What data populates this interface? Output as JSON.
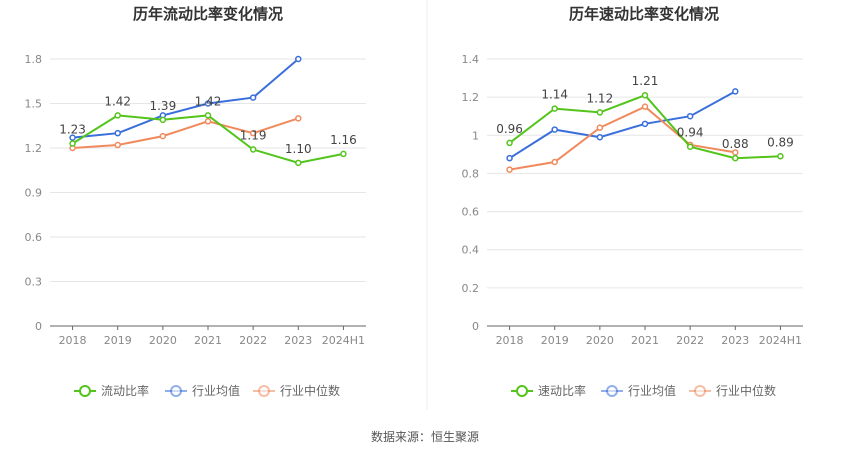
{
  "source_text": "数据来源：恒生聚源",
  "colors": {
    "primary": "#52c41a",
    "avg": "#3a6fdb",
    "median": "#f08a5d",
    "grid": "#e6e6e6",
    "axis": "#666666"
  },
  "chart_data": [
    {
      "type": "line",
      "title": "历年流动比率变化情况",
      "categories": [
        "2018",
        "2019",
        "2020",
        "2021",
        "2022",
        "2023",
        "2024H1"
      ],
      "ylim": [
        0,
        1.8
      ],
      "yticks": [
        "0",
        "0.3",
        "0.6",
        "0.9",
        "1.2",
        "1.5",
        "1.8"
      ],
      "grid": true,
      "legend_position": "bottom",
      "series": [
        {
          "name": "流动比率",
          "color": "#52c41a",
          "labeled": true,
          "values": [
            1.23,
            1.42,
            1.39,
            1.42,
            1.19,
            1.1,
            1.16
          ],
          "labels": [
            "1.23",
            "1.42",
            "1.39",
            "1.42",
            "1.19",
            "1.10",
            "1.16"
          ]
        },
        {
          "name": "行业均值",
          "color": "#3a6fdb",
          "labeled": false,
          "values": [
            1.27,
            1.3,
            1.42,
            1.5,
            1.54,
            1.8,
            null
          ]
        },
        {
          "name": "行业中位数",
          "color": "#f08a5d",
          "labeled": false,
          "values": [
            1.2,
            1.22,
            1.28,
            1.38,
            1.3,
            1.4,
            null
          ]
        }
      ]
    },
    {
      "type": "line",
      "title": "历年速动比率变化情况",
      "categories": [
        "2018",
        "2019",
        "2020",
        "2021",
        "2022",
        "2023",
        "2024H1"
      ],
      "ylim": [
        0,
        1.4
      ],
      "yticks": [
        "0",
        "0.2",
        "0.4",
        "0.6",
        "0.8",
        "1",
        "1.2",
        "1.4"
      ],
      "grid": true,
      "legend_position": "bottom",
      "series": [
        {
          "name": "速动比率",
          "color": "#52c41a",
          "labeled": true,
          "values": [
            0.96,
            1.14,
            1.12,
            1.21,
            0.94,
            0.88,
            0.89
          ],
          "labels": [
            "0.96",
            "1.14",
            "1.12",
            "1.21",
            "0.94",
            "0.88",
            "0.89"
          ]
        },
        {
          "name": "行业均值",
          "color": "#3a6fdb",
          "labeled": false,
          "values": [
            0.88,
            1.03,
            0.99,
            1.06,
            1.1,
            1.23,
            null
          ]
        },
        {
          "name": "行业中位数",
          "color": "#f08a5d",
          "labeled": false,
          "values": [
            0.82,
            0.86,
            1.04,
            1.15,
            0.95,
            0.91,
            null
          ]
        }
      ]
    }
  ]
}
